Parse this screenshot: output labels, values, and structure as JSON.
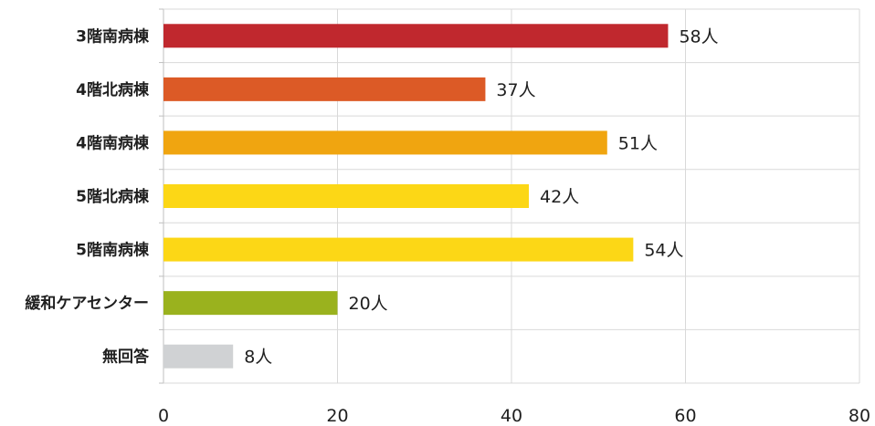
{
  "chart_data": {
    "type": "bar",
    "orientation": "horizontal",
    "categories": [
      "3階南病棟",
      "4階北病棟",
      "4階南病棟",
      "5階北病棟",
      "5階南病棟",
      "緩和ケアセンター",
      "無回答"
    ],
    "values": [
      58,
      37,
      51,
      42,
      54,
      20,
      8
    ],
    "value_labels": [
      "58人",
      "37人",
      "51人",
      "42人",
      "54人",
      "20人",
      "8人"
    ],
    "colors": [
      "#c0282e",
      "#dc5a26",
      "#f0a510",
      "#fcd716",
      "#fcd716",
      "#9ab21e",
      "#d0d2d4"
    ],
    "xlim": [
      0,
      80
    ],
    "xticks": [
      0,
      20,
      40,
      60,
      80
    ],
    "xtick_labels": [
      "0",
      "20",
      "40",
      "60",
      "80"
    ],
    "grid": true,
    "title": "",
    "xlabel": "",
    "ylabel": ""
  }
}
